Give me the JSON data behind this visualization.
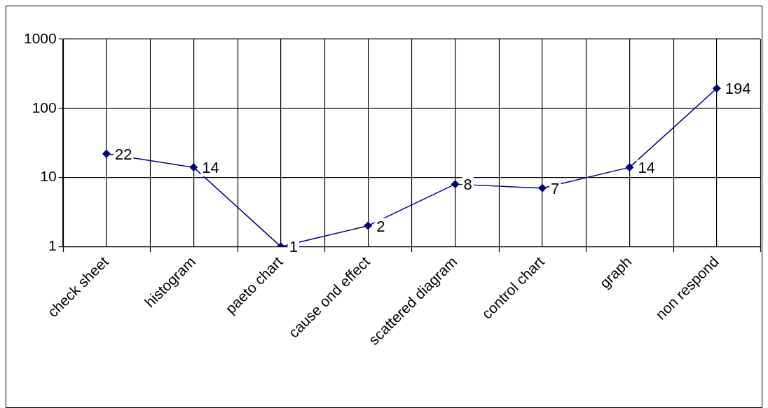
{
  "chart_data": {
    "type": "line",
    "categories": [
      "check sheet",
      "histogram",
      "paeto chart",
      "cause ond effect",
      "scattered diagram",
      "control chart",
      "graph",
      "non respond"
    ],
    "series": [
      {
        "color": "#000080",
        "values": [
          22,
          14,
          1,
          2,
          8,
          7,
          14,
          194
        ]
      }
    ],
    "log": "y",
    "ylim": [
      1,
      1000
    ],
    "yticks": [
      1,
      10,
      100,
      1000
    ],
    "grid": true,
    "legend": false,
    "marker": "diamond",
    "line_style": "solid",
    "data_labels": true
  }
}
